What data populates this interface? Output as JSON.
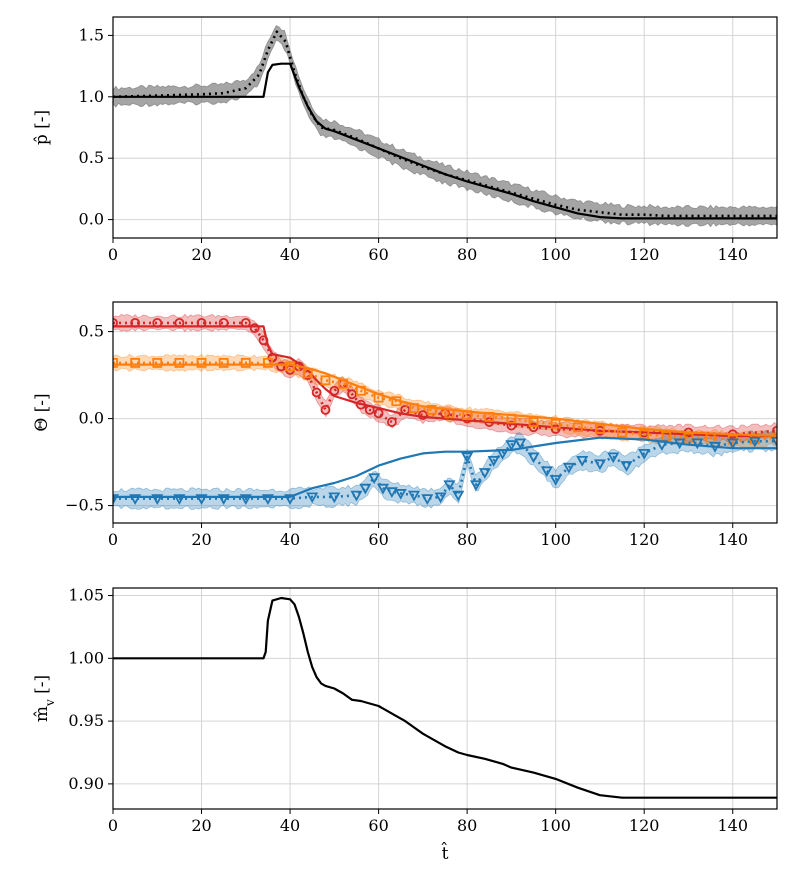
{
  "chart_data": [
    {
      "type": "line",
      "panel": "top",
      "ylabel": "p̂ [-]",
      "xlabel": "",
      "xlim": [
        0,
        150
      ],
      "ylim": [
        -0.15,
        1.65
      ],
      "xticks": [
        0,
        20,
        40,
        60,
        80,
        100,
        120,
        140
      ],
      "xtick_labels": [
        "0",
        "20",
        "40",
        "60",
        "80",
        "100",
        "120",
        "140"
      ],
      "yticks": [
        0.0,
        0.5,
        1.0,
        1.5
      ],
      "ytick_labels": [
        "0.0",
        "0.5",
        "1.0",
        "1.5"
      ],
      "grid": true,
      "series": [
        {
          "name": "reference",
          "style": "solid",
          "color": "#000000",
          "x": [
            0,
            10,
            20,
            30,
            34,
            35,
            36,
            38,
            40,
            42,
            44,
            46,
            48,
            50,
            55,
            60,
            65,
            70,
            75,
            80,
            85,
            90,
            95,
            100,
            105,
            110,
            115,
            120,
            125,
            130,
            135,
            140,
            145,
            150
          ],
          "y": [
            1.0,
            1.0,
            1.0,
            1.0,
            1.0,
            1.2,
            1.26,
            1.27,
            1.27,
            1.08,
            0.92,
            0.8,
            0.74,
            0.72,
            0.65,
            0.58,
            0.51,
            0.44,
            0.37,
            0.31,
            0.26,
            0.21,
            0.15,
            0.1,
            0.05,
            0.02,
            0.01,
            0.01,
            0.01,
            0.01,
            0.01,
            0.01,
            0.01,
            0.01
          ]
        },
        {
          "name": "estimate",
          "style": "dotted",
          "color": "#000000",
          "x": [
            0,
            10,
            20,
            25,
            30,
            33,
            35,
            37,
            39,
            41,
            43,
            45,
            47,
            50,
            55,
            60,
            65,
            70,
            75,
            80,
            85,
            90,
            95,
            100,
            105,
            110,
            115,
            120,
            125,
            130,
            135,
            140,
            145,
            150
          ],
          "y": [
            1.0,
            1.01,
            1.02,
            1.03,
            1.07,
            1.18,
            1.38,
            1.53,
            1.45,
            1.2,
            1.0,
            0.85,
            0.75,
            0.73,
            0.66,
            0.58,
            0.5,
            0.43,
            0.37,
            0.32,
            0.27,
            0.22,
            0.17,
            0.12,
            0.08,
            0.06,
            0.04,
            0.04,
            0.03,
            0.03,
            0.03,
            0.03,
            0.03,
            0.03
          ]
        },
        {
          "name": "uncertainty",
          "style": "band",
          "color": "#7f7f7f",
          "halfwidth": 0.07
        }
      ]
    },
    {
      "type": "line",
      "panel": "middle",
      "ylabel": "Θ [-]",
      "xlabel": "",
      "xlim": [
        0,
        150
      ],
      "ylim": [
        -0.6,
        0.67
      ],
      "xticks": [
        0,
        20,
        40,
        60,
        80,
        100,
        120,
        140
      ],
      "xtick_labels": [
        "0",
        "20",
        "40",
        "60",
        "80",
        "100",
        "120",
        "140"
      ],
      "yticks": [
        -0.5,
        0.0,
        0.5
      ],
      "ytick_labels": [
        "−0.5",
        "0.0",
        "0.5"
      ],
      "grid": true,
      "series": [
        {
          "name": "red-reference",
          "style": "solid",
          "color": "#d62728",
          "x": [
            0,
            10,
            20,
            30,
            34,
            35,
            36,
            40,
            44,
            46,
            48,
            50,
            55,
            60,
            65,
            70,
            80,
            90,
            100,
            110,
            120,
            130,
            140,
            150
          ],
          "y": [
            0.53,
            0.53,
            0.53,
            0.53,
            0.53,
            0.42,
            0.37,
            0.35,
            0.28,
            0.22,
            0.17,
            0.13,
            0.09,
            0.06,
            0.03,
            0.01,
            -0.01,
            -0.03,
            -0.05,
            -0.07,
            -0.08,
            -0.09,
            -0.1,
            -0.1
          ]
        },
        {
          "name": "red-estimate",
          "style": "dotted",
          "color": "#d62728",
          "marker": "circle",
          "x": [
            0,
            5,
            10,
            15,
            20,
            25,
            30,
            32,
            34,
            36,
            38,
            40,
            42,
            44,
            46,
            48,
            50,
            52,
            54,
            56,
            58,
            60,
            63,
            66,
            70,
            75,
            80,
            85,
            90,
            95,
            100,
            110,
            120,
            130,
            140,
            150
          ],
          "y": [
            0.55,
            0.55,
            0.55,
            0.55,
            0.55,
            0.55,
            0.55,
            0.52,
            0.45,
            0.35,
            0.3,
            0.28,
            0.3,
            0.25,
            0.15,
            0.05,
            0.16,
            0.2,
            0.14,
            0.08,
            0.05,
            0.03,
            -0.02,
            0.05,
            0.02,
            0.03,
            0.0,
            -0.02,
            -0.04,
            -0.05,
            -0.06,
            -0.07,
            -0.08,
            -0.08,
            -0.09,
            -0.07
          ]
        },
        {
          "name": "orange-reference",
          "style": "solid",
          "color": "#ff7f0e",
          "x": [
            0,
            10,
            20,
            30,
            36,
            40,
            44,
            48,
            52,
            56,
            60,
            65,
            70,
            80,
            90,
            100,
            110,
            120,
            130,
            140,
            150
          ],
          "y": [
            0.31,
            0.31,
            0.31,
            0.31,
            0.31,
            0.31,
            0.29,
            0.26,
            0.22,
            0.18,
            0.14,
            0.1,
            0.07,
            0.04,
            0.02,
            0.0,
            -0.03,
            -0.06,
            -0.08,
            -0.09,
            -0.1
          ]
        },
        {
          "name": "orange-estimate",
          "style": "dotted",
          "color": "#ff7f0e",
          "marker": "square",
          "x": [
            0,
            5,
            10,
            15,
            20,
            25,
            30,
            35,
            40,
            44,
            48,
            52,
            56,
            60,
            64,
            68,
            72,
            76,
            80,
            85,
            90,
            95,
            100,
            105,
            110,
            115,
            120,
            125,
            130,
            135,
            140,
            145,
            150
          ],
          "y": [
            0.32,
            0.32,
            0.32,
            0.32,
            0.32,
            0.32,
            0.32,
            0.32,
            0.3,
            0.26,
            0.22,
            0.2,
            0.16,
            0.12,
            0.1,
            0.06,
            0.05,
            0.03,
            0.02,
            0.01,
            0.0,
            -0.02,
            -0.03,
            -0.05,
            -0.06,
            -0.08,
            -0.09,
            -0.1,
            -0.11,
            -0.11,
            -0.12,
            -0.12,
            -0.11
          ]
        },
        {
          "name": "blue-reference",
          "style": "solid",
          "color": "#1f77b4",
          "x": [
            0,
            10,
            20,
            30,
            40,
            45,
            50,
            55,
            60,
            65,
            70,
            75,
            80,
            90,
            100,
            110,
            120,
            130,
            140,
            150
          ],
          "y": [
            -0.45,
            -0.45,
            -0.45,
            -0.45,
            -0.45,
            -0.4,
            -0.37,
            -0.33,
            -0.27,
            -0.23,
            -0.2,
            -0.19,
            -0.19,
            -0.18,
            -0.14,
            -0.11,
            -0.12,
            -0.15,
            -0.17,
            -0.17
          ]
        },
        {
          "name": "blue-estimate",
          "style": "dotted",
          "color": "#1f77b4",
          "marker": "triangle-down",
          "x": [
            0,
            5,
            10,
            15,
            20,
            25,
            30,
            35,
            40,
            45,
            50,
            55,
            57,
            59,
            61,
            63,
            65,
            68,
            71,
            74,
            76,
            78,
            80,
            82,
            84,
            86,
            88,
            90,
            92,
            95,
            98,
            100,
            103,
            106,
            110,
            113,
            116,
            120,
            124,
            128,
            132,
            136,
            140,
            145,
            150
          ],
          "y": [
            -0.46,
            -0.46,
            -0.46,
            -0.46,
            -0.46,
            -0.46,
            -0.46,
            -0.46,
            -0.46,
            -0.45,
            -0.45,
            -0.44,
            -0.4,
            -0.34,
            -0.4,
            -0.42,
            -0.43,
            -0.44,
            -0.46,
            -0.45,
            -0.38,
            -0.44,
            -0.22,
            -0.38,
            -0.31,
            -0.24,
            -0.2,
            -0.15,
            -0.14,
            -0.22,
            -0.3,
            -0.35,
            -0.28,
            -0.24,
            -0.26,
            -0.22,
            -0.27,
            -0.2,
            -0.15,
            -0.14,
            -0.14,
            -0.16,
            -0.14,
            -0.13,
            -0.13
          ]
        },
        {
          "name": "red-uncertainty",
          "style": "band",
          "color": "#d62728",
          "halfwidth": 0.04
        },
        {
          "name": "orange-uncertainty",
          "style": "band",
          "color": "#ff7f0e",
          "halfwidth": 0.04
        },
        {
          "name": "blue-uncertainty",
          "style": "band",
          "color": "#1f77b4",
          "halfwidth": 0.05
        }
      ]
    },
    {
      "type": "line",
      "panel": "bottom",
      "ylabel": "m̂_v [-]",
      "xlabel": "t̂",
      "xlim": [
        0,
        150
      ],
      "ylim": [
        0.88,
        1.056
      ],
      "xticks": [
        0,
        20,
        40,
        60,
        80,
        100,
        120,
        140
      ],
      "xtick_labels": [
        "0",
        "20",
        "40",
        "60",
        "80",
        "100",
        "120",
        "140"
      ],
      "yticks": [
        0.9,
        0.95,
        1.0,
        1.05
      ],
      "ytick_labels": [
        "0.90",
        "0.95",
        "1.00",
        "1.05"
      ],
      "grid": true,
      "series": [
        {
          "name": "mass",
          "style": "solid",
          "color": "#000000",
          "x": [
            0,
            10,
            20,
            30,
            34,
            34.5,
            35,
            36,
            38,
            40,
            41,
            42,
            43,
            44,
            45,
            46,
            47,
            48,
            50,
            52,
            54,
            56,
            58,
            60,
            62,
            64,
            66,
            68,
            70,
            72,
            75,
            78,
            80,
            84,
            88,
            90,
            95,
            100,
            105,
            110,
            115,
            120,
            130,
            140,
            150
          ],
          "y": [
            1.0,
            1.0,
            1.0,
            1.0,
            1.0,
            1.005,
            1.03,
            1.046,
            1.048,
            1.047,
            1.043,
            1.033,
            1.02,
            1.005,
            0.993,
            0.985,
            0.98,
            0.978,
            0.976,
            0.972,
            0.967,
            0.966,
            0.964,
            0.962,
            0.958,
            0.954,
            0.95,
            0.945,
            0.94,
            0.936,
            0.93,
            0.925,
            0.923,
            0.92,
            0.916,
            0.913,
            0.909,
            0.904,
            0.897,
            0.891,
            0.889,
            0.889,
            0.889,
            0.889,
            0.889
          ]
        }
      ]
    }
  ]
}
